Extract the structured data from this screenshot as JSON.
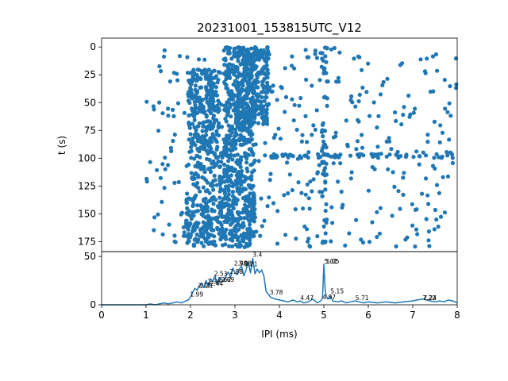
{
  "chart_data": [
    {
      "type": "scatter",
      "title": "20231001_153815UTC_V12",
      "xlabel": "",
      "ylabel": "t (s)",
      "xlim": [
        0,
        8
      ],
      "ylim": [
        184,
        -8
      ],
      "y_inverted": true,
      "yticks": [
        "0",
        "25",
        "50",
        "75",
        "100",
        "125",
        "150",
        "175"
      ],
      "color": "#1f77b4",
      "grid": false,
      "clusters": [
        {
          "x_range": [
            1.95,
            2.65
          ],
          "t_range": [
            20,
            95
          ],
          "count": 260
        },
        {
          "x_range": [
            1.95,
            2.75
          ],
          "t_range": [
            95,
            130
          ],
          "count": 80
        },
        {
          "x_range": [
            1.9,
            2.75
          ],
          "t_range": [
            135,
            180
          ],
          "count": 170
        },
        {
          "x_range": [
            2.75,
            3.45
          ],
          "t_range": [
            0,
            180
          ],
          "count": 620
        },
        {
          "x_range": [
            3.0,
            3.75
          ],
          "t_range": [
            0,
            70
          ],
          "count": 260
        },
        {
          "x_range": [
            4.95,
            5.08
          ],
          "t_range": [
            0,
            180
          ],
          "count": 55
        },
        {
          "x_range": [
            1.0,
            8.0
          ],
          "t_range": [
            0,
            180
          ],
          "count": 420
        },
        {
          "x_range": [
            3.6,
            8.0
          ],
          "t_range": [
            96,
            100
          ],
          "count": 70
        }
      ]
    },
    {
      "type": "line",
      "xlabel": "IPI (ms)",
      "ylabel": "",
      "xlim": [
        0,
        8
      ],
      "ylim": [
        0,
        55
      ],
      "xticks": [
        "0",
        "1",
        "2",
        "3",
        "4",
        "5",
        "6",
        "7",
        "8"
      ],
      "yticks": [
        "0",
        "50"
      ],
      "color": "#1f77b4",
      "grid": false,
      "x": [
        0,
        1.0,
        1.1,
        1.2,
        1.3,
        1.4,
        1.5,
        1.6,
        1.7,
        1.8,
        1.9,
        1.95,
        2.0,
        2.05,
        2.1,
        2.15,
        2.2,
        2.25,
        2.3,
        2.35,
        2.4,
        2.45,
        2.5,
        2.55,
        2.6,
        2.65,
        2.7,
        2.75,
        2.8,
        2.85,
        2.9,
        2.95,
        3.0,
        3.05,
        3.1,
        3.15,
        3.2,
        3.25,
        3.3,
        3.35,
        3.4,
        3.45,
        3.5,
        3.55,
        3.6,
        3.65,
        3.7,
        3.75,
        3.8,
        3.9,
        4.0,
        4.1,
        4.2,
        4.3,
        4.4,
        4.47,
        4.55,
        4.65,
        4.75,
        4.85,
        4.93,
        4.97,
        5.0,
        5.03,
        5.06,
        5.1,
        5.15,
        5.2,
        5.3,
        5.4,
        5.5,
        5.6,
        5.71,
        5.8,
        5.9,
        6.0,
        6.2,
        6.4,
        6.6,
        6.8,
        7.0,
        7.1,
        7.22,
        7.3,
        7.4,
        7.5,
        7.6,
        7.7,
        7.8,
        7.9,
        8.0
      ],
      "y": [
        0,
        0,
        1,
        0,
        1,
        2,
        1,
        2,
        3,
        2,
        4,
        5,
        8,
        13,
        17,
        15,
        20,
        22,
        18,
        25,
        19,
        27,
        24,
        30,
        22,
        28,
        26,
        24,
        30,
        34,
        28,
        38,
        33,
        31,
        37,
        40,
        30,
        36,
        44,
        33,
        48,
        32,
        37,
        33,
        36,
        30,
        14,
        11,
        8,
        6,
        5,
        4,
        3,
        5,
        3,
        4,
        2,
        3,
        6,
        2,
        4,
        7,
        42,
        15,
        8,
        6,
        9,
        4,
        3,
        4,
        2,
        3,
        4,
        3,
        2,
        3,
        2,
        3,
        2,
        3,
        4,
        5,
        6,
        5,
        4,
        3,
        4,
        3,
        5,
        4,
        2
      ],
      "annotations": [
        {
          "label": "1.99",
          "x": 1.99,
          "y": 8
        },
        {
          "label": "2.17",
          "x": 2.17,
          "y": 17
        },
        {
          "label": "2.21",
          "x": 2.21,
          "y": 17
        },
        {
          "label": "2.38",
          "x": 2.38,
          "y": 21
        },
        {
          "label": "2.44",
          "x": 2.44,
          "y": 19
        },
        {
          "label": "2.53",
          "x": 2.53,
          "y": 29
        },
        {
          "label": "2.62",
          "x": 2.62,
          "y": 23
        },
        {
          "label": "2.69",
          "x": 2.69,
          "y": 23
        },
        {
          "label": "2.88",
          "x": 2.88,
          "y": 31
        },
        {
          "label": "2.98",
          "x": 2.98,
          "y": 40
        },
        {
          "label": "3.08",
          "x": 3.08,
          "y": 40
        },
        {
          "label": "3.21",
          "x": 3.21,
          "y": 39
        },
        {
          "label": "3.4",
          "x": 3.4,
          "y": 49
        },
        {
          "label": "3.78",
          "x": 3.78,
          "y": 10
        },
        {
          "label": "4.47",
          "x": 4.47,
          "y": 4
        },
        {
          "label": "4.97",
          "x": 4.97,
          "y": 5
        },
        {
          "label": "5.01",
          "x": 5.01,
          "y": 42
        },
        {
          "label": "5.05",
          "x": 5.05,
          "y": 42
        },
        {
          "label": "5.15",
          "x": 5.15,
          "y": 11
        },
        {
          "label": "5.71",
          "x": 5.71,
          "y": 4
        },
        {
          "label": "7.22",
          "x": 7.22,
          "y": 4
        },
        {
          "label": "7.24",
          "x": 7.24,
          "y": 4
        }
      ]
    }
  ]
}
